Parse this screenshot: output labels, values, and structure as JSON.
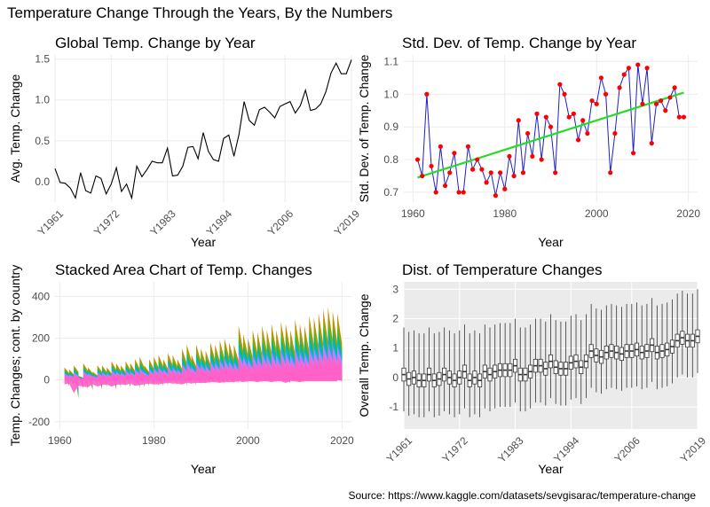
{
  "main_title": "Temperature Change Through the Years, By the Numbers",
  "source": "Source: https://www.kaggle.com/datasets/sevgisarac/temperature-change",
  "colors": {
    "line": "#000000",
    "sd_line": "#1f1fcc",
    "sd_points": "#ff0000",
    "trend": "#22dd22",
    "grid": "#ebebeb",
    "panel_gray": "#ebebeb",
    "area_palette": [
      "#cc8a00",
      "#7cae00",
      "#00bf7d",
      "#00b4ef",
      "#c77cff",
      "#ff61c9"
    ]
  },
  "chart_data": [
    {
      "type": "line",
      "title": "Global Temp. Change by Year",
      "xlabel": "Year",
      "ylabel": "Avg. Temp. Change",
      "x_tick_labels": [
        "Y1961",
        "Y1972",
        "Y1983",
        "Y1994",
        "Y2006",
        "Y2019"
      ],
      "y_ticks": [
        "0.0",
        "0.5",
        "1.0",
        "1.5"
      ],
      "xlim": [
        1961,
        2019
      ],
      "ylim": [
        -0.25,
        1.55
      ],
      "x": [
        1961,
        1962,
        1963,
        1964,
        1965,
        1966,
        1967,
        1968,
        1969,
        1970,
        1971,
        1972,
        1973,
        1974,
        1975,
        1976,
        1977,
        1978,
        1979,
        1980,
        1981,
        1982,
        1983,
        1984,
        1985,
        1986,
        1987,
        1988,
        1989,
        1990,
        1991,
        1992,
        1993,
        1994,
        1995,
        1996,
        1997,
        1998,
        1999,
        2000,
        2001,
        2002,
        2003,
        2004,
        2005,
        2006,
        2007,
        2008,
        2009,
        2010,
        2011,
        2012,
        2013,
        2014,
        2015,
        2016,
        2017,
        2018,
        2019
      ],
      "values": [
        0.16,
        -0.01,
        -0.02,
        -0.08,
        -0.2,
        0.11,
        -0.11,
        -0.14,
        0.07,
        0.04,
        -0.15,
        -0.03,
        0.17,
        -0.12,
        -0.03,
        -0.2,
        0.19,
        0.06,
        0.15,
        0.25,
        0.23,
        0.23,
        0.41,
        0.07,
        0.08,
        0.19,
        0.42,
        0.43,
        0.28,
        0.6,
        0.37,
        0.27,
        0.25,
        0.53,
        0.57,
        0.31,
        0.58,
        0.98,
        0.75,
        0.69,
        0.88,
        0.91,
        0.85,
        0.78,
        0.92,
        0.95,
        0.98,
        0.84,
        0.93,
        1.12,
        0.87,
        0.89,
        0.95,
        1.1,
        1.33,
        1.45,
        1.32,
        1.32,
        1.49
      ],
      "grid": true
    },
    {
      "type": "scatter",
      "title": "Std. Dev. of Temp. Change by Year",
      "xlabel": "Year",
      "ylabel": "Std. Dev. of Temp. Change",
      "x_ticks": [
        1960,
        1980,
        2000,
        2020
      ],
      "y_ticks": [
        "0.7",
        "0.8",
        "0.9",
        "1.0",
        "1.1"
      ],
      "xlim": [
        1958,
        2022
      ],
      "ylim": [
        0.67,
        1.12
      ],
      "x": [
        1961,
        1962,
        1963,
        1964,
        1965,
        1966,
        1967,
        1968,
        1969,
        1970,
        1971,
        1972,
        1973,
        1974,
        1975,
        1976,
        1977,
        1978,
        1979,
        1980,
        1981,
        1982,
        1983,
        1984,
        1985,
        1986,
        1987,
        1988,
        1989,
        1990,
        1991,
        1992,
        1993,
        1994,
        1995,
        1996,
        1997,
        1998,
        1999,
        2000,
        2001,
        2002,
        2003,
        2004,
        2005,
        2006,
        2007,
        2008,
        2009,
        2010,
        2011,
        2012,
        2013,
        2014,
        2015,
        2016,
        2017,
        2018,
        2019
      ],
      "values": [
        0.8,
        0.75,
        1.0,
        0.78,
        0.7,
        0.84,
        0.72,
        0.76,
        0.82,
        0.7,
        0.7,
        0.84,
        0.77,
        0.8,
        0.77,
        0.73,
        0.76,
        0.69,
        0.76,
        0.71,
        0.81,
        0.75,
        0.92,
        0.76,
        0.88,
        0.81,
        0.94,
        0.8,
        0.93,
        0.9,
        0.76,
        1.03,
        1.0,
        0.93,
        0.94,
        0.86,
        0.92,
        0.88,
        0.98,
        0.97,
        1.05,
        1.0,
        0.76,
        0.88,
        1.02,
        1.06,
        1.08,
        0.82,
        1.09,
        0.97,
        1.08,
        0.85,
        0.97,
        0.98,
        0.95,
        0.99,
        1.02,
        0.93,
        0.93
      ],
      "trend": {
        "x": [
          1961,
          2019
        ],
        "y": [
          0.745,
          1.005
        ]
      },
      "grid": true
    },
    {
      "type": "area",
      "title": "Stacked Area Chart of Temp. Changes",
      "xlabel": "Year",
      "ylabel": "Temp. Changes; cont. by country",
      "x_ticks": [
        1960,
        1980,
        2000,
        2020
      ],
      "y_ticks": [
        "-200",
        "0",
        "200",
        "400"
      ],
      "xlim": [
        1959,
        2022
      ],
      "ylim": [
        -235,
        470
      ],
      "x": [
        1961,
        1962,
        1963,
        1964,
        1965,
        1966,
        1967,
        1968,
        1969,
        1970,
        1971,
        1972,
        1973,
        1974,
        1975,
        1976,
        1977,
        1978,
        1979,
        1980,
        1981,
        1982,
        1983,
        1984,
        1985,
        1986,
        1987,
        1988,
        1989,
        1990,
        1991,
        1992,
        1993,
        1994,
        1995,
        1996,
        1997,
        1998,
        1999,
        2000,
        2001,
        2002,
        2003,
        2004,
        2005,
        2006,
        2007,
        2008,
        2009,
        2010,
        2011,
        2012,
        2013,
        2014,
        2015,
        2016,
        2017,
        2018,
        2019
      ],
      "top_envelope": [
        60,
        50,
        70,
        20,
        80,
        60,
        40,
        70,
        70,
        60,
        90,
        80,
        70,
        90,
        80,
        100,
        110,
        70,
        100,
        110,
        120,
        100,
        130,
        120,
        100,
        150,
        170,
        120,
        170,
        150,
        140,
        180,
        170,
        190,
        200,
        180,
        170,
        260,
        220,
        200,
        240,
        230,
        260,
        240,
        270,
        240,
        280,
        270,
        240,
        290,
        270,
        260,
        310,
        300,
        320,
        340,
        350,
        330,
        320
      ],
      "bottom_envelope": [
        -60,
        -50,
        -180,
        -80,
        -90,
        -100,
        -60,
        -90,
        -70,
        -60,
        -90,
        -70,
        -60,
        -70,
        -50,
        -80,
        -70,
        -60,
        -50,
        -60,
        -60,
        -50,
        -40,
        -50,
        -50,
        -60,
        -40,
        -50,
        -40,
        -40,
        -40,
        -30,
        -30,
        -40,
        -30,
        -30,
        -30,
        -20,
        -30,
        -20,
        -20,
        -30,
        -20,
        -20,
        -30,
        -20,
        -20,
        -40,
        -20,
        -20,
        -30,
        -20,
        -20,
        -20,
        -20,
        -20,
        -20,
        -20,
        -20
      ],
      "grid": true
    },
    {
      "type": "box",
      "title": "Dist. of Temperature Changes",
      "xlabel": "Year",
      "ylabel": "Overall Temp. Change",
      "x_tick_labels": [
        "Y1961",
        "Y1972",
        "Y1983",
        "Y1994",
        "Y2006",
        "Y2019"
      ],
      "y_ticks": [
        "-1",
        "0",
        "1",
        "2",
        "3"
      ],
      "xlim": [
        1961,
        2019
      ],
      "ylim": [
        -1.75,
        3.25
      ],
      "x": [
        1961,
        1962,
        1963,
        1964,
        1965,
        1966,
        1967,
        1968,
        1969,
        1970,
        1971,
        1972,
        1973,
        1974,
        1975,
        1976,
        1977,
        1978,
        1979,
        1980,
        1981,
        1982,
        1983,
        1984,
        1985,
        1986,
        1987,
        1988,
        1989,
        1990,
        1991,
        1992,
        1993,
        1994,
        1995,
        1996,
        1997,
        1998,
        1999,
        2000,
        2001,
        2002,
        2003,
        2004,
        2005,
        2006,
        2007,
        2008,
        2009,
        2010,
        2011,
        2012,
        2013,
        2014,
        2015,
        2016,
        2017,
        2018,
        2019
      ],
      "medians": [
        0.1,
        -0.05,
        0.0,
        -0.1,
        -0.1,
        0.1,
        -0.1,
        -0.05,
        0.1,
        0.0,
        -0.1,
        0.0,
        0.2,
        -0.1,
        0.0,
        -0.1,
        0.2,
        0.1,
        0.2,
        0.25,
        0.25,
        0.25,
        0.4,
        0.1,
        0.1,
        0.2,
        0.4,
        0.4,
        0.3,
        0.55,
        0.35,
        0.3,
        0.3,
        0.5,
        0.55,
        0.35,
        0.55,
        0.9,
        0.75,
        0.7,
        0.85,
        0.9,
        0.85,
        0.8,
        0.9,
        0.9,
        0.95,
        0.85,
        0.9,
        1.1,
        0.85,
        0.9,
        0.95,
        1.05,
        1.25,
        1.35,
        1.25,
        1.25,
        1.4
      ],
      "panel_background": "gray",
      "grid": true
    }
  ]
}
